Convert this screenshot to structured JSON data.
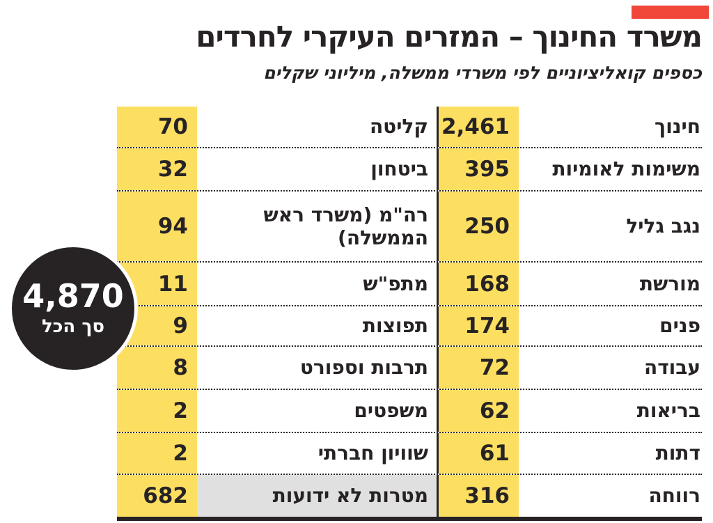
{
  "colors": {
    "ink": "#272325",
    "yellow": "#fcdf61",
    "gray": "#e0e0e0",
    "red": "#f1463a",
    "paper": "#ffffff"
  },
  "header": {
    "title": "משרד החינוך – המזרים העיקרי לחרדים",
    "subtitle": "כספים קואליציוניים לפי משרדי ממשלה, מיליוני שקלים"
  },
  "total": {
    "value": "4,870",
    "label": "סך הכל"
  },
  "table": {
    "rows": [
      {
        "right": {
          "label": "חינוך",
          "value": "2,461"
        },
        "left": {
          "label": "קליטה",
          "value": "70"
        }
      },
      {
        "right": {
          "label": "משימות לאומיות",
          "value": "395"
        },
        "left": {
          "label": "ביטחון",
          "value": "32"
        }
      },
      {
        "right": {
          "label": "נגב גליל",
          "value": "250"
        },
        "left": {
          "label": "רה\"מ (משרד ראש הממשלה)",
          "value": "94"
        }
      },
      {
        "right": {
          "label": "מורשת",
          "value": "168"
        },
        "left": {
          "label": "מתפ\"ש",
          "value": "11"
        }
      },
      {
        "right": {
          "label": "פנים",
          "value": "174"
        },
        "left": {
          "label": "תפוצות",
          "value": "9"
        }
      },
      {
        "right": {
          "label": "עבודה",
          "value": "72"
        },
        "left": {
          "label": "תרבות וספורט",
          "value": "8"
        }
      },
      {
        "right": {
          "label": "בריאות",
          "value": "62"
        },
        "left": {
          "label": "משפטים",
          "value": "2"
        }
      },
      {
        "right": {
          "label": "דתות",
          "value": "61"
        },
        "left": {
          "label": "שוויון חברתי",
          "value": "2"
        }
      },
      {
        "right": {
          "label": "רווחה",
          "value": "316"
        },
        "left": {
          "label": "מטרות לא ידועות",
          "value": "682",
          "highlight": "gray"
        }
      }
    ]
  },
  "chart_data": {
    "type": "table",
    "title": "משרד החינוך – המזרים העיקרי לחרדים",
    "subtitle": "כספים קואליציוניים לפי משרדי ממשלה, מיליוני שקלים",
    "unit": "מיליוני שקלים",
    "categories": [
      "חינוך",
      "משימות לאומיות",
      "נגב גליל",
      "מורשת",
      "פנים",
      "עבודה",
      "בריאות",
      "דתות",
      "רווחה",
      "קליטה",
      "ביטחון",
      "רה\"מ (משרד ראש הממשלה)",
      "מתפ\"ש",
      "תפוצות",
      "תרבות וספורט",
      "משפטים",
      "שוויון חברתי",
      "מטרות לא ידועות"
    ],
    "values": [
      2461,
      395,
      250,
      168,
      174,
      72,
      62,
      61,
      316,
      70,
      32,
      94,
      11,
      9,
      8,
      2,
      2,
      682
    ],
    "total": 4870,
    "total_label": "סך הכל",
    "highlighted_category": "מטרות לא ידועות"
  }
}
